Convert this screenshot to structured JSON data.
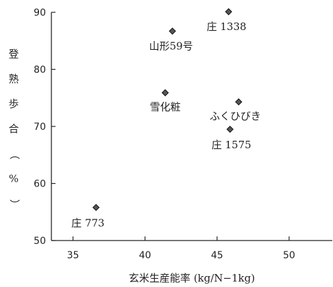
{
  "chart_data": {
    "type": "scatter",
    "title": "",
    "xlabel": "玄米生産能率 (kg/N−1kg)",
    "ylabel": "登熟歩合（%）",
    "xlim": [
      33.5,
      53
    ],
    "ylim": [
      50,
      90
    ],
    "xticks": [
      35,
      40,
      45,
      50
    ],
    "yticks": [
      50,
      60,
      70,
      80,
      90
    ],
    "grid": false,
    "legend": "none",
    "marker": "diamond",
    "marker_color": "#555555",
    "points": [
      {
        "label": "庄 773",
        "x": 36.6,
        "y": 55.8
      },
      {
        "label": "雪化粧",
        "x": 41.4,
        "y": 75.9
      },
      {
        "label": "山形59号",
        "x": 41.9,
        "y": 86.7
      },
      {
        "label": "庄 1338",
        "x": 45.8,
        "y": 90.1
      },
      {
        "label": "ふくひびき",
        "x": 46.5,
        "y": 74.3
      },
      {
        "label": "庄 1575",
        "x": 45.9,
        "y": 69.5
      }
    ]
  }
}
